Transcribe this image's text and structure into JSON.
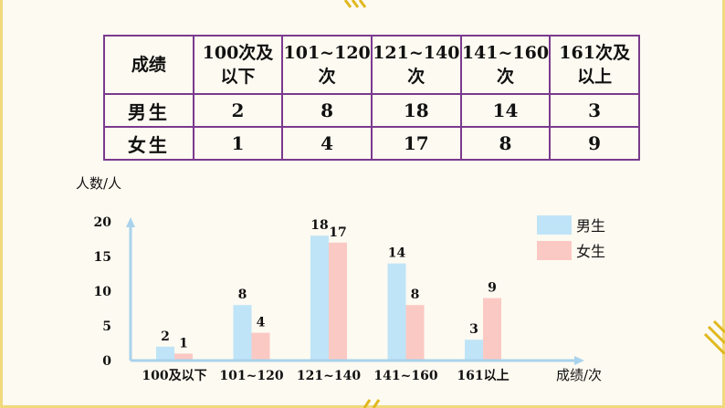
{
  "table": {
    "header": [
      "成绩",
      "100次及\n以下",
      "101~120\n次",
      "121~140\n次",
      "141~160\n次",
      "161次及\n以上"
    ],
    "rows": [
      {
        "label": "男生",
        "values": [
          "2",
          "8",
          "18",
          "14",
          "3"
        ]
      },
      {
        "label": "女生",
        "values": [
          "1",
          "4",
          "17",
          "8",
          "9"
        ]
      }
    ]
  },
  "chart_data": {
    "type": "bar",
    "ylabel": "人数/人",
    "xlabel": "成绩/次",
    "categories": [
      "100及以下",
      "101~120",
      "121~140",
      "141~160",
      "161以上"
    ],
    "series": [
      {
        "name": "男生",
        "values": [
          2,
          8,
          18,
          14,
          3
        ],
        "color": "#bfe4f7"
      },
      {
        "name": "女生",
        "values": [
          1,
          4,
          17,
          8,
          9
        ],
        "color": "#fbc9c4"
      }
    ],
    "yticks": [
      0,
      5,
      10,
      15,
      20
    ],
    "ylim": [
      0,
      20
    ],
    "grid": false,
    "legend": "top-right",
    "axis_color": "#a9d3ec"
  }
}
